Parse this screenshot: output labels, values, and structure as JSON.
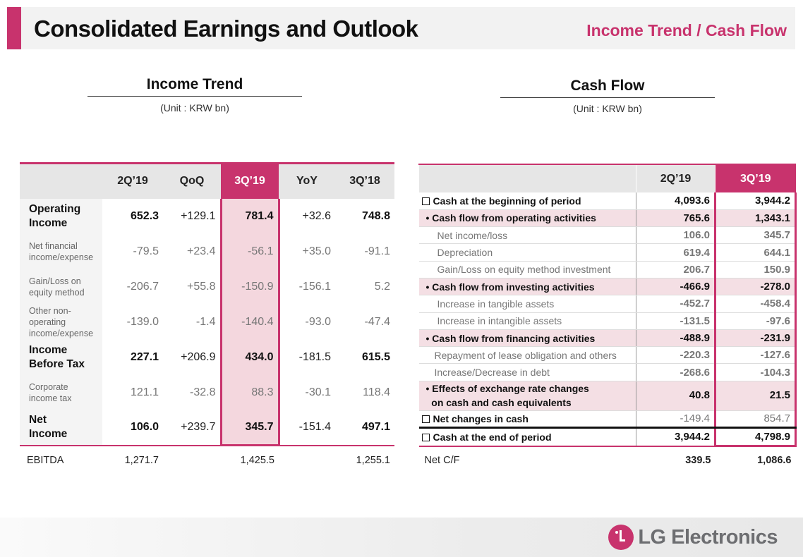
{
  "header": {
    "title": "Consolidated Earnings and Outlook",
    "subtitle": "Income Trend / Cash Flow"
  },
  "income": {
    "title": "Income Trend",
    "unit": "(Unit : KRW bn)",
    "columns": [
      "",
      "2Q’19",
      "QoQ",
      "3Q’19",
      "YoY",
      "3Q’18"
    ],
    "rows": [
      {
        "label": "Operating\nIncome",
        "values": [
          "652.3",
          "+129.1",
          "781.4",
          "+32.6",
          "748.8"
        ],
        "bold": true
      },
      {
        "label": "Net financial\nincome/expense",
        "values": [
          "-79.5",
          "+23.4",
          "-56.1",
          "+35.0",
          "-91.1"
        ],
        "bold": false
      },
      {
        "label": "Gain/Loss on\nequity method",
        "values": [
          "-206.7",
          "+55.8",
          "-150.9",
          "-156.1",
          "5.2"
        ],
        "bold": false
      },
      {
        "label": "Other non-operating\nincome/expense",
        "values": [
          "-139.0",
          "-1.4",
          "-140.4",
          "-93.0",
          "-47.4"
        ],
        "bold": false
      },
      {
        "label": "Income\nBefore Tax",
        "values": [
          "227.1",
          "+206.9",
          "434.0",
          "-181.5",
          "615.5"
        ],
        "bold": true
      },
      {
        "label": "Corporate\nincome tax",
        "values": [
          "121.1",
          "-32.8",
          "88.3",
          "-30.1",
          "118.4"
        ],
        "bold": false
      },
      {
        "label": "Net\nIncome",
        "values": [
          "106.0",
          "+239.7",
          "345.7",
          "-151.4",
          "497.1"
        ],
        "bold": true
      }
    ],
    "footer": {
      "label": "EBITDA",
      "values": [
        "1,271.7",
        "",
        "1,425.5",
        "",
        "1,255.1"
      ]
    }
  },
  "cashflow": {
    "title": "Cash Flow",
    "unit": "(Unit : KRW bn)",
    "columns": [
      "",
      "2Q’19",
      "3Q’19"
    ],
    "rows": [
      {
        "label": "Cash at the beginning of period",
        "values": [
          "4,093.6",
          "3,944.2"
        ],
        "level": "l0",
        "box": true
      },
      {
        "label": "• Cash flow from operating activities",
        "values": [
          "765.6",
          "1,343.1"
        ],
        "level": "l1"
      },
      {
        "label": "Net income/loss",
        "values": [
          "106.0",
          "345.7"
        ],
        "level": "l2"
      },
      {
        "label": "Depreciation",
        "values": [
          "619.4",
          "644.1"
        ],
        "level": "l2"
      },
      {
        "label": "Gain/Loss on equity method investment",
        "values": [
          "206.7",
          "150.9"
        ],
        "level": "l2"
      },
      {
        "label": "• Cash flow from investing activities",
        "values": [
          "-466.9",
          "-278.0"
        ],
        "level": "l1"
      },
      {
        "label": "Increase in tangible assets",
        "values": [
          "-452.7",
          "-458.4"
        ],
        "level": "l2"
      },
      {
        "label": "Increase in intangible assets",
        "values": [
          "-131.5",
          "-97.6"
        ],
        "level": "l2"
      },
      {
        "label": "• Cash flow from financing activities",
        "values": [
          "-488.9",
          "-231.9"
        ],
        "level": "l1"
      },
      {
        "label": "Repayment of lease obligation and others",
        "values": [
          "-220.3",
          "-127.6"
        ],
        "level": "l2b"
      },
      {
        "label": "Increase/Decrease in debt",
        "values": [
          "-268.6",
          "-104.3"
        ],
        "level": "l2b"
      },
      {
        "label": "• Effects of exchange rate changes\n  on cash and cash equivalents",
        "values": [
          "40.8",
          "21.5"
        ],
        "level": "l1 fx"
      },
      {
        "label": "Net changes in cash",
        "values": [
          "-149.4",
          "854.7"
        ],
        "level": "l0 net",
        "box": true
      },
      {
        "label": "Cash at the end of period",
        "values": [
          "3,944.2",
          "4,798.9"
        ],
        "level": "l0 end",
        "box": true
      }
    ],
    "footer": {
      "label": "Net C/F",
      "values": [
        "339.5",
        "1,086.6"
      ]
    }
  },
  "brand": {
    "name": "LG Electronics",
    "accent": "#c8336d"
  }
}
